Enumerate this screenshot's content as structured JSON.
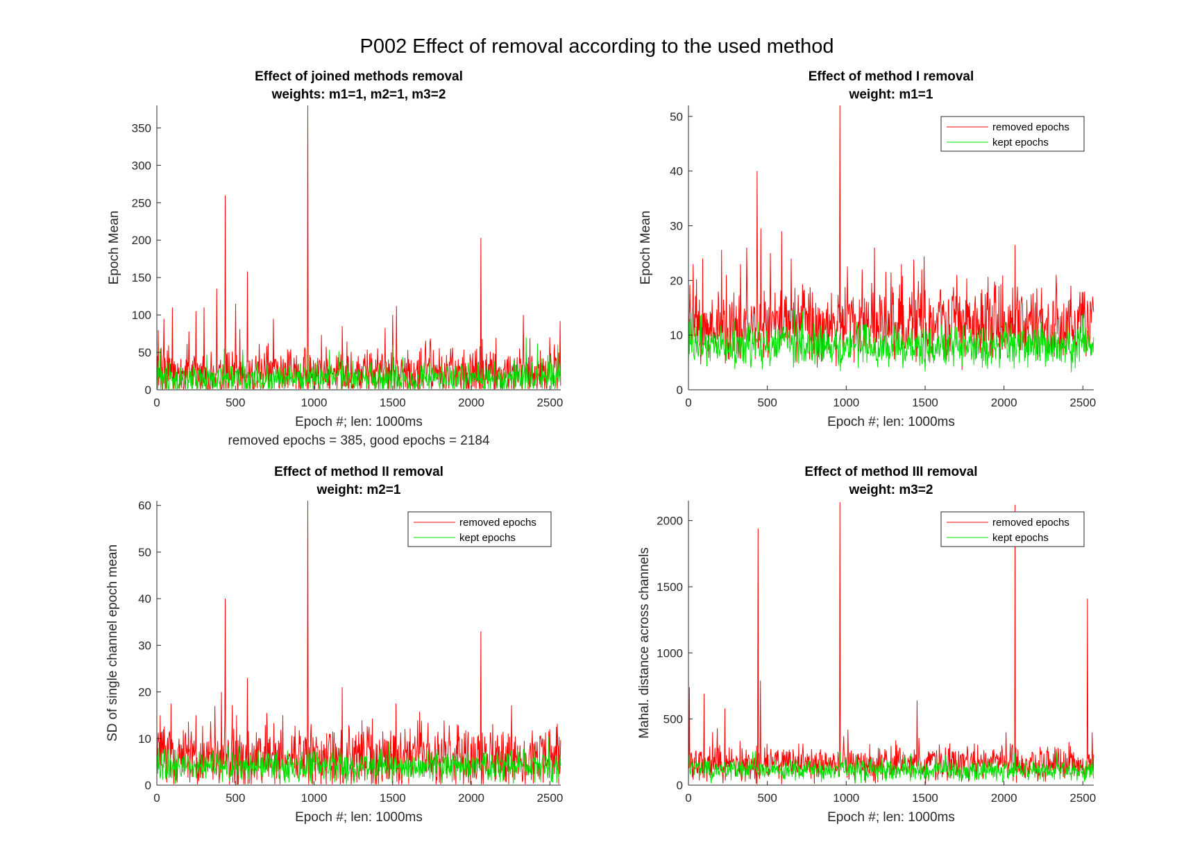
{
  "figure": {
    "suptitle": "P002 Effect of removal according to the used method"
  },
  "chart_data": [
    {
      "type": "line",
      "title": [
        "Effect of joined methods removal",
        "weights: m1=1, m2=1, m3=2"
      ],
      "xlabel": "Epoch #; len: 1000ms",
      "xlabel2": "removed epochs = 385, good epochs = 2184",
      "ylabel": "Epoch Mean",
      "xlim": [
        0,
        2569
      ],
      "ylim": [
        0,
        380
      ],
      "xticks": [
        0,
        500,
        1000,
        1500,
        2000,
        2500
      ],
      "yticks": [
        0,
        50,
        100,
        150,
        200,
        250,
        300,
        350
      ],
      "legend": null,
      "series": [
        {
          "key": "removed",
          "color": "#ff0000",
          "base": 22,
          "noise": 30,
          "spikes": [
            [
              10,
              80
            ],
            [
              45,
              95
            ],
            [
              100,
              110
            ],
            [
              250,
              105
            ],
            [
              300,
              110
            ],
            [
              380,
              135
            ],
            [
              435,
              260
            ],
            [
              500,
              115
            ],
            [
              575,
              158
            ],
            [
              740,
              95
            ],
            [
              960,
              380
            ],
            [
              1180,
              85
            ],
            [
              1500,
              100
            ],
            [
              1525,
              112
            ],
            [
              2060,
              203
            ],
            [
              2330,
              100
            ],
            [
              2500,
              70
            ]
          ]
        },
        {
          "key": "kept",
          "color": "#00e000",
          "base": 15,
          "noise": 18,
          "spikes": [
            [
              20,
              55
            ],
            [
              430,
              55
            ],
            [
              960,
              58
            ],
            [
              1500,
              60
            ],
            [
              2350,
              70
            ],
            [
              2420,
              62
            ],
            [
              2550,
              60
            ]
          ]
        }
      ]
    },
    {
      "type": "line",
      "title": [
        "Effect of method I removal",
        "weight: m1=1"
      ],
      "xlabel": "Epoch #; len: 1000ms",
      "ylabel": "Epoch Mean",
      "xlim": [
        0,
        2569
      ],
      "ylim": [
        0,
        52
      ],
      "xticks": [
        0,
        500,
        1000,
        1500,
        2000,
        2500
      ],
      "yticks": [
        0,
        10,
        20,
        30,
        40,
        50
      ],
      "legend": {
        "position": "top-right",
        "entries": [
          "removed epochs",
          "kept epochs"
        ]
      },
      "series": [
        {
          "key": "removed",
          "name": "removed epochs",
          "color": "#ff0000",
          "base": 12,
          "noise": 6,
          "spikes": [
            [
              30,
              23
            ],
            [
              90,
              24
            ],
            [
              240,
              21
            ],
            [
              330,
              23
            ],
            [
              370,
              26
            ],
            [
              435,
              40
            ],
            [
              460,
              29.5
            ],
            [
              520,
              25
            ],
            [
              590,
              29
            ],
            [
              650,
              24
            ],
            [
              960,
              52
            ],
            [
              1100,
              22
            ],
            [
              1180,
              26
            ],
            [
              1350,
              23
            ],
            [
              1480,
              22
            ],
            [
              1700,
              21
            ],
            [
              2070,
              26.5
            ],
            [
              2330,
              21
            ],
            [
              2510,
              18
            ]
          ]
        },
        {
          "key": "kept",
          "name": "kept epochs",
          "color": "#00e000",
          "base": 8,
          "noise": 3.5,
          "spikes": [
            [
              10,
              13
            ],
            [
              440,
              12.5
            ],
            [
              600,
              11.5
            ],
            [
              1120,
              12
            ]
          ]
        }
      ]
    },
    {
      "type": "line",
      "title": [
        "Effect of method II removal",
        "weight: m2=1"
      ],
      "xlabel": "Epoch #; len: 1000ms",
      "ylabel": "SD of single channel epoch mean",
      "xlim": [
        0,
        2569
      ],
      "ylim": [
        0,
        61
      ],
      "xticks": [
        0,
        500,
        1000,
        1500,
        2000,
        2500
      ],
      "yticks": [
        0,
        10,
        20,
        30,
        40,
        50,
        60
      ],
      "legend": {
        "position": "top-right",
        "entries": [
          "removed epochs",
          "kept epochs"
        ]
      },
      "series": [
        {
          "key": "removed",
          "name": "removed epochs",
          "color": "#ff0000",
          "base": 6,
          "noise": 6,
          "spikes": [
            [
              20,
              15
            ],
            [
              90,
              17.5
            ],
            [
              250,
              15
            ],
            [
              370,
              17
            ],
            [
              410,
              20
            ],
            [
              435,
              40
            ],
            [
              575,
              23
            ],
            [
              800,
              15
            ],
            [
              960,
              61
            ],
            [
              1180,
              21
            ],
            [
              1520,
              17.5
            ],
            [
              2060,
              33
            ],
            [
              2500,
              12
            ]
          ]
        },
        {
          "key": "kept",
          "name": "kept epochs",
          "color": "#00e000",
          "base": 4,
          "noise": 3,
          "spikes": [
            [
              10,
              8
            ],
            [
              450,
              8.5
            ],
            [
              960,
              8
            ],
            [
              2400,
              8.5
            ]
          ]
        }
      ]
    },
    {
      "type": "line",
      "title": [
        "Effect of method III removal",
        "weight: m3=2"
      ],
      "xlabel": "Epoch #; len: 1000ms",
      "ylabel": "Mahal. distance across channels",
      "xlim": [
        0,
        2569
      ],
      "ylim": [
        0,
        2150
      ],
      "xticks": [
        0,
        500,
        1000,
        1500,
        2000,
        2500
      ],
      "yticks": [
        0,
        500,
        1000,
        1500,
        2000
      ],
      "legend": {
        "position": "top-right",
        "entries": [
          "removed epochs",
          "kept epochs"
        ]
      },
      "series": [
        {
          "key": "removed",
          "name": "removed epochs",
          "color": "#ff0000",
          "base": 160,
          "noise": 120,
          "spikes": [
            [
              5,
              740
            ],
            [
              100,
              690
            ],
            [
              230,
              580
            ],
            [
              440,
              1940
            ],
            [
              455,
              790
            ],
            [
              960,
              2140
            ],
            [
              1010,
              420
            ],
            [
              1450,
              640
            ],
            [
              2070,
              2120
            ],
            [
              2530,
              1410
            ],
            [
              2560,
              400
            ]
          ]
        },
        {
          "key": "kept",
          "name": "kept epochs",
          "color": "#00e000",
          "base": 110,
          "noise": 70,
          "spikes": [
            [
              5,
              230
            ],
            [
              960,
              250
            ],
            [
              2070,
              240
            ]
          ]
        }
      ]
    }
  ]
}
